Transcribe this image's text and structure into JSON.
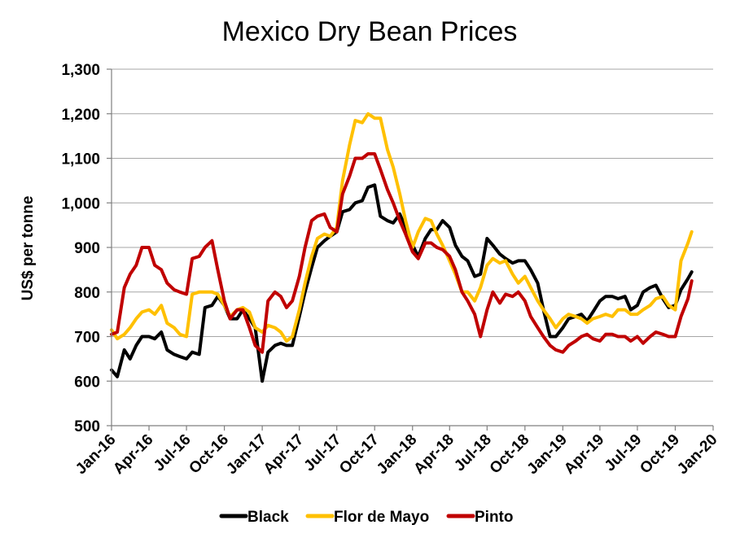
{
  "chart_data": {
    "type": "line",
    "title": "Mexico Dry Bean Prices",
    "ylabel": "US$ per tonne",
    "xlabel": "",
    "ylim": [
      500,
      1300
    ],
    "yticks": [
      500,
      600,
      700,
      800,
      900,
      1000,
      1100,
      1200,
      1300
    ],
    "ytick_labels": [
      "500",
      "600",
      "700",
      "800",
      "900",
      "1,000",
      "1,100",
      "1,200",
      "1,300"
    ],
    "x_range": [
      "2016-01-01",
      "2020-01-01"
    ],
    "xticks": [
      "2016-01-01",
      "2016-04-01",
      "2016-07-01",
      "2016-10-01",
      "2017-01-01",
      "2017-04-01",
      "2017-07-01",
      "2017-10-01",
      "2018-01-01",
      "2018-04-01",
      "2018-07-01",
      "2018-10-01",
      "2019-01-01",
      "2019-04-01",
      "2019-07-01",
      "2019-10-01",
      "2020-01-01"
    ],
    "xtick_labels": [
      "Jan-16",
      "Apr-16",
      "Jul-16",
      "Oct-16",
      "Jan-17",
      "Apr-17",
      "Jul-17",
      "Oct-17",
      "Jan-18",
      "Apr-18",
      "Jul-18",
      "Oct-18",
      "Jan-19",
      "Apr-19",
      "Jul-19",
      "Oct-19",
      "Jan-20"
    ],
    "grid": "horizontal",
    "legend_position": "bottom",
    "series": [
      {
        "name": "Black",
        "color": "#000000",
        "x": [
          "2016-01-01",
          "2016-01-15",
          "2016-02-01",
          "2016-02-15",
          "2016-03-01",
          "2016-03-15",
          "2016-04-01",
          "2016-04-15",
          "2016-05-01",
          "2016-05-15",
          "2016-06-01",
          "2016-06-15",
          "2016-07-01",
          "2016-07-15",
          "2016-08-01",
          "2016-08-15",
          "2016-09-01",
          "2016-09-15",
          "2016-10-01",
          "2016-10-15",
          "2016-11-01",
          "2016-11-15",
          "2016-12-01",
          "2016-12-15",
          "2017-01-01",
          "2017-01-15",
          "2017-02-01",
          "2017-02-15",
          "2017-03-01",
          "2017-03-15",
          "2017-04-01",
          "2017-04-15",
          "2017-05-01",
          "2017-05-15",
          "2017-06-01",
          "2017-06-15",
          "2017-07-01",
          "2017-07-15",
          "2017-08-01",
          "2017-08-15",
          "2017-09-01",
          "2017-09-15",
          "2017-10-01",
          "2017-10-15",
          "2017-11-01",
          "2017-11-15",
          "2017-12-01",
          "2017-12-15",
          "2018-01-01",
          "2018-01-15",
          "2018-02-01",
          "2018-02-15",
          "2018-03-01",
          "2018-03-15",
          "2018-04-01",
          "2018-04-15",
          "2018-05-01",
          "2018-05-15",
          "2018-06-01",
          "2018-06-15",
          "2018-07-01",
          "2018-07-15",
          "2018-08-01",
          "2018-08-15",
          "2018-09-01",
          "2018-09-15",
          "2018-10-01",
          "2018-10-15",
          "2018-11-01",
          "2018-11-15",
          "2018-12-01",
          "2018-12-15",
          "2019-01-01",
          "2019-01-15",
          "2019-02-01",
          "2019-02-15",
          "2019-03-01",
          "2019-03-15",
          "2019-04-01",
          "2019-04-15",
          "2019-05-01",
          "2019-05-15",
          "2019-06-01",
          "2019-06-15",
          "2019-07-01",
          "2019-07-15",
          "2019-08-01",
          "2019-08-15",
          "2019-09-01",
          "2019-09-15",
          "2019-10-01",
          "2019-10-15",
          "2019-11-01",
          "2019-11-10"
        ],
        "values": [
          625,
          610,
          670,
          650,
          680,
          700,
          700,
          695,
          710,
          670,
          660,
          655,
          650,
          665,
          660,
          765,
          770,
          790,
          770,
          740,
          740,
          760,
          740,
          720,
          600,
          665,
          680,
          685,
          680,
          680,
          745,
          800,
          855,
          900,
          915,
          925,
          935,
          980,
          985,
          1000,
          1005,
          1035,
          1040,
          970,
          960,
          955,
          975,
          945,
          905,
          880,
          920,
          940,
          940,
          960,
          945,
          905,
          880,
          870,
          835,
          840,
          920,
          905,
          885,
          875,
          865,
          870,
          870,
          850,
          820,
          760,
          700,
          700,
          720,
          740,
          745,
          750,
          735,
          755,
          780,
          790,
          790,
          785,
          790,
          760,
          770,
          800,
          810,
          815,
          785,
          765,
          770,
          805,
          830,
          845
        ]
      },
      {
        "name": "Flor de Mayo",
        "color": "#ffc000",
        "x": [
          "2016-01-01",
          "2016-01-15",
          "2016-02-01",
          "2016-02-15",
          "2016-03-01",
          "2016-03-15",
          "2016-04-01",
          "2016-04-15",
          "2016-05-01",
          "2016-05-15",
          "2016-06-01",
          "2016-06-15",
          "2016-07-01",
          "2016-07-15",
          "2016-08-01",
          "2016-08-15",
          "2016-09-01",
          "2016-09-15",
          "2016-10-01",
          "2016-10-15",
          "2016-11-01",
          "2016-11-15",
          "2016-12-01",
          "2016-12-15",
          "2017-01-01",
          "2017-01-15",
          "2017-02-01",
          "2017-02-15",
          "2017-03-01",
          "2017-03-15",
          "2017-04-01",
          "2017-04-15",
          "2017-05-01",
          "2017-05-15",
          "2017-06-01",
          "2017-06-15",
          "2017-07-01",
          "2017-07-15",
          "2017-08-01",
          "2017-08-15",
          "2017-09-01",
          "2017-09-15",
          "2017-10-01",
          "2017-10-15",
          "2017-11-01",
          "2017-11-15",
          "2017-12-01",
          "2017-12-15",
          "2018-01-01",
          "2018-01-15",
          "2018-02-01",
          "2018-02-15",
          "2018-03-01",
          "2018-03-15",
          "2018-04-01",
          "2018-04-15",
          "2018-05-01",
          "2018-05-15",
          "2018-06-01",
          "2018-06-15",
          "2018-07-01",
          "2018-07-15",
          "2018-08-01",
          "2018-08-15",
          "2018-09-01",
          "2018-09-15",
          "2018-10-01",
          "2018-10-15",
          "2018-11-01",
          "2018-11-15",
          "2018-12-01",
          "2018-12-15",
          "2019-01-01",
          "2019-01-15",
          "2019-02-01",
          "2019-02-15",
          "2019-03-01",
          "2019-03-15",
          "2019-04-01",
          "2019-04-15",
          "2019-05-01",
          "2019-05-15",
          "2019-06-01",
          "2019-06-15",
          "2019-07-01",
          "2019-07-15",
          "2019-08-01",
          "2019-08-15",
          "2019-09-01",
          "2019-09-15",
          "2019-10-01",
          "2019-10-15",
          "2019-11-01",
          "2019-11-10"
        ],
        "values": [
          715,
          695,
          705,
          720,
          740,
          755,
          760,
          750,
          770,
          730,
          720,
          705,
          700,
          795,
          800,
          800,
          800,
          795,
          770,
          745,
          760,
          765,
          755,
          720,
          710,
          725,
          720,
          710,
          690,
          700,
          760,
          820,
          880,
          920,
          930,
          925,
          945,
          1050,
          1130,
          1185,
          1180,
          1200,
          1190,
          1190,
          1120,
          1080,
          1020,
          960,
          900,
          935,
          965,
          960,
          930,
          905,
          870,
          840,
          800,
          800,
          780,
          810,
          860,
          875,
          865,
          870,
          840,
          820,
          835,
          810,
          780,
          760,
          740,
          720,
          740,
          750,
          745,
          740,
          730,
          740,
          745,
          750,
          745,
          760,
          760,
          750,
          750,
          760,
          770,
          785,
          790,
          770,
          760,
          870,
          910,
          935
        ]
      },
      {
        "name": "Pinto",
        "color": "#c00000",
        "x": [
          "2016-01-01",
          "2016-01-15",
          "2016-02-01",
          "2016-02-15",
          "2016-03-01",
          "2016-03-15",
          "2016-04-01",
          "2016-04-15",
          "2016-05-01",
          "2016-05-15",
          "2016-06-01",
          "2016-06-15",
          "2016-07-01",
          "2016-07-15",
          "2016-08-01",
          "2016-08-15",
          "2016-09-01",
          "2016-09-15",
          "2016-10-01",
          "2016-10-15",
          "2016-11-01",
          "2016-11-15",
          "2016-12-01",
          "2016-12-15",
          "2017-01-01",
          "2017-01-15",
          "2017-02-01",
          "2017-02-15",
          "2017-03-01",
          "2017-03-15",
          "2017-04-01",
          "2017-04-15",
          "2017-05-01",
          "2017-05-15",
          "2017-06-01",
          "2017-06-15",
          "2017-07-01",
          "2017-07-15",
          "2017-08-01",
          "2017-08-15",
          "2017-09-01",
          "2017-09-15",
          "2017-10-01",
          "2017-10-15",
          "2017-11-01",
          "2017-11-15",
          "2017-12-01",
          "2017-12-15",
          "2018-01-01",
          "2018-01-15",
          "2018-02-01",
          "2018-02-15",
          "2018-03-01",
          "2018-03-15",
          "2018-04-01",
          "2018-04-15",
          "2018-05-01",
          "2018-05-15",
          "2018-06-01",
          "2018-06-15",
          "2018-07-01",
          "2018-07-15",
          "2018-08-01",
          "2018-08-15",
          "2018-09-01",
          "2018-09-15",
          "2018-10-01",
          "2018-10-15",
          "2018-11-01",
          "2018-11-15",
          "2018-12-01",
          "2018-12-15",
          "2019-01-01",
          "2019-01-15",
          "2019-02-01",
          "2019-02-15",
          "2019-03-01",
          "2019-03-15",
          "2019-04-01",
          "2019-04-15",
          "2019-05-01",
          "2019-05-15",
          "2019-06-01",
          "2019-06-15",
          "2019-07-01",
          "2019-07-15",
          "2019-08-01",
          "2019-08-15",
          "2019-09-01",
          "2019-09-15",
          "2019-10-01",
          "2019-10-15",
          "2019-11-01",
          "2019-11-10"
        ],
        "values": [
          705,
          710,
          810,
          840,
          860,
          900,
          900,
          860,
          850,
          820,
          805,
          800,
          795,
          875,
          880,
          900,
          915,
          850,
          780,
          740,
          760,
          760,
          720,
          680,
          665,
          780,
          800,
          790,
          765,
          780,
          835,
          900,
          960,
          970,
          975,
          945,
          935,
          1020,
          1060,
          1100,
          1100,
          1110,
          1110,
          1075,
          1030,
          1000,
          960,
          930,
          890,
          875,
          910,
          910,
          900,
          895,
          880,
          850,
          800,
          780,
          750,
          700,
          760,
          800,
          775,
          795,
          790,
          800,
          780,
          745,
          720,
          700,
          680,
          670,
          665,
          680,
          690,
          700,
          705,
          695,
          690,
          705,
          705,
          700,
          700,
          690,
          700,
          685,
          700,
          710,
          705,
          700,
          700,
          745,
          785,
          825
        ]
      }
    ]
  }
}
